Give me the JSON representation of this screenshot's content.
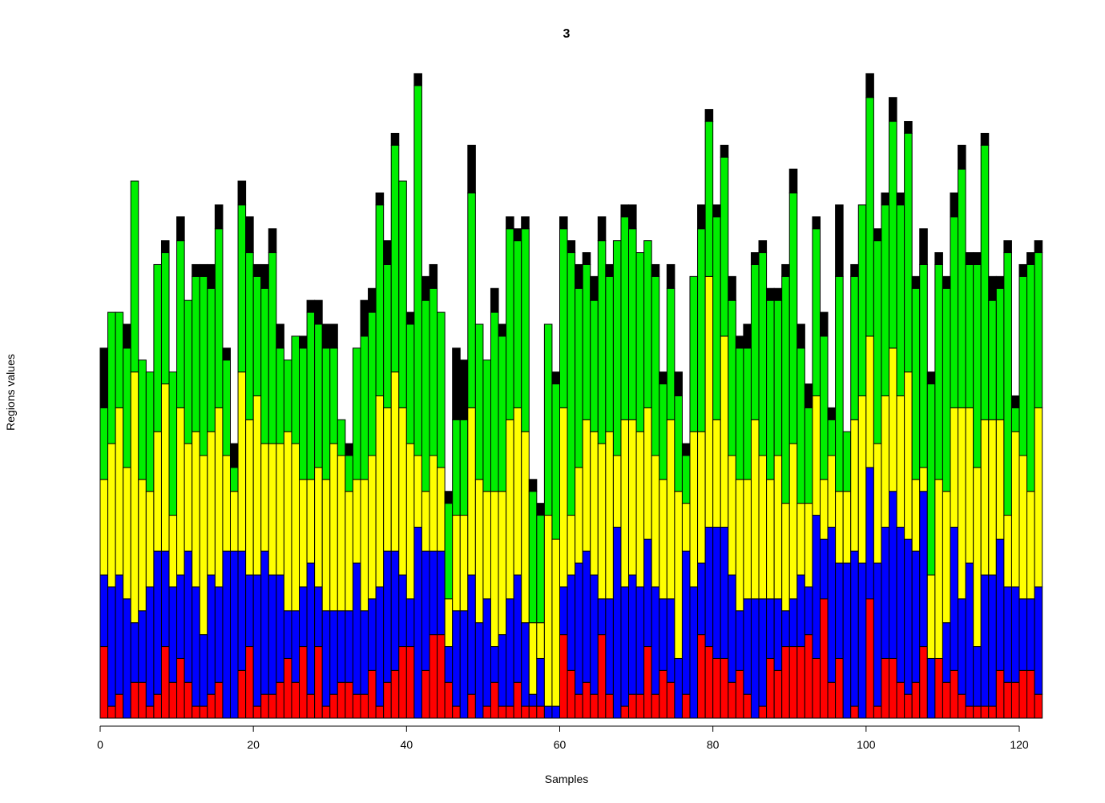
{
  "chart_data": {
    "type": "bar",
    "stacked": true,
    "title": "3",
    "xlabel": "Samples",
    "ylabel": "Regions values",
    "xlim": [
      0,
      122
    ],
    "ylim": [
      0,
      55
    ],
    "x_ticks": [
      0,
      20,
      40,
      60,
      80,
      100,
      120
    ],
    "y_ticks_shown": false,
    "grid": false,
    "colors": {
      "red": "#ff0000",
      "blue": "#0000ff",
      "yellow": "#ffff00",
      "green": "#00ee00",
      "black": "#000000"
    },
    "series": [
      {
        "name": "red",
        "values": [
          6,
          1,
          2,
          0,
          3,
          3,
          1,
          2,
          6,
          3,
          5,
          3,
          1,
          1,
          2,
          3,
          0,
          0,
          4,
          6,
          1,
          2,
          2,
          3,
          5,
          3,
          6,
          2,
          6,
          1,
          2,
          3,
          3,
          2,
          2,
          4,
          1,
          3,
          4,
          6,
          6,
          0,
          4,
          7,
          7,
          3,
          1,
          0,
          2,
          0,
          1,
          3,
          1,
          1,
          3,
          1,
          1,
          1,
          0,
          0,
          7,
          4,
          2,
          3,
          2,
          7,
          2,
          0,
          1,
          2,
          2,
          6,
          2,
          4,
          3,
          0,
          2,
          0,
          7,
          6,
          5,
          5,
          3,
          4,
          2,
          0,
          1,
          5,
          4,
          6,
          6,
          6,
          7,
          5,
          10,
          3,
          5,
          0,
          1,
          0,
          10,
          1,
          5,
          5,
          3,
          2,
          3,
          6,
          0,
          5,
          3,
          4,
          2,
          1,
          1,
          1,
          1,
          4,
          3,
          3,
          4,
          4,
          2
        ]
      },
      {
        "name": "blue",
        "values": [
          6,
          10,
          10,
          10,
          5,
          6,
          10,
          12,
          8,
          8,
          7,
          11,
          10,
          6,
          10,
          8,
          14,
          14,
          10,
          6,
          11,
          12,
          10,
          9,
          4,
          6,
          5,
          11,
          5,
          8,
          7,
          6,
          6,
          11,
          7,
          6,
          10,
          11,
          10,
          6,
          4,
          16,
          10,
          7,
          7,
          3,
          8,
          9,
          10,
          8,
          9,
          3,
          6,
          9,
          9,
          7,
          1,
          4,
          1,
          1,
          4,
          8,
          11,
          11,
          10,
          3,
          8,
          16,
          10,
          10,
          9,
          9,
          9,
          6,
          7,
          5,
          12,
          11,
          6,
          10,
          11,
          11,
          9,
          5,
          8,
          10,
          9,
          5,
          6,
          3,
          4,
          6,
          4,
          12,
          5,
          13,
          8,
          13,
          13,
          13,
          11,
          12,
          11,
          14,
          13,
          13,
          11,
          13,
          5,
          0,
          5,
          12,
          8,
          12,
          5,
          11,
          11,
          11,
          8,
          8,
          6,
          6,
          9
        ]
      },
      {
        "name": "yellow",
        "values": [
          8,
          12,
          14,
          11,
          21,
          11,
          8,
          10,
          14,
          6,
          14,
          9,
          13,
          15,
          12,
          15,
          8,
          5,
          15,
          13,
          15,
          9,
          11,
          11,
          15,
          14,
          9,
          7,
          10,
          11,
          14,
          13,
          10,
          7,
          11,
          12,
          16,
          12,
          15,
          14,
          13,
          6,
          5,
          8,
          7,
          4,
          8,
          8,
          14,
          12,
          9,
          13,
          12,
          15,
          14,
          16,
          6,
          3,
          16,
          14,
          15,
          5,
          8,
          11,
          12,
          13,
          14,
          6,
          14,
          13,
          13,
          11,
          11,
          10,
          15,
          14,
          4,
          13,
          11,
          21,
          9,
          16,
          10,
          11,
          10,
          15,
          12,
          10,
          12,
          9,
          13,
          6,
          7,
          10,
          5,
          6,
          6,
          6,
          11,
          14,
          11,
          10,
          11,
          12,
          11,
          14,
          6,
          2,
          7,
          15,
          11,
          10,
          16,
          13,
          15,
          13,
          13,
          10,
          6,
          13,
          12,
          9,
          15
        ]
      },
      {
        "name": "green",
        "values": [
          6,
          11,
          8,
          10,
          16,
          10,
          10,
          14,
          11,
          12,
          14,
          12,
          13,
          15,
          12,
          15,
          8,
          2,
          14,
          14,
          10,
          13,
          16,
          8,
          6,
          9,
          11,
          14,
          12,
          11,
          8,
          3,
          3,
          11,
          12,
          12,
          16,
          12,
          19,
          19,
          10,
          31,
          16,
          14,
          13,
          8,
          8,
          8,
          18,
          13,
          11,
          15,
          13,
          16,
          14,
          17,
          11,
          9,
          16,
          13,
          15,
          22,
          15,
          13,
          11,
          17,
          13,
          18,
          17,
          16,
          15,
          14,
          15,
          8,
          11,
          8,
          4,
          13,
          17,
          13,
          17,
          15,
          13,
          11,
          11,
          13,
          17,
          15,
          13,
          19,
          21,
          13,
          8,
          14,
          12,
          3,
          18,
          5,
          12,
          16,
          20,
          17,
          16,
          19,
          16,
          20,
          16,
          17,
          16,
          18,
          17,
          16,
          20,
          12,
          17,
          23,
          10,
          11,
          22,
          2,
          15,
          19,
          13
        ]
      },
      {
        "name": "black",
        "values": [
          5,
          0,
          0,
          2,
          0,
          0,
          0,
          0,
          1,
          0,
          2,
          0,
          1,
          1,
          2,
          2,
          1,
          2,
          2,
          3,
          1,
          2,
          2,
          2,
          0,
          0,
          1,
          1,
          2,
          2,
          2,
          0,
          1,
          0,
          3,
          2,
          1,
          2,
          1,
          0,
          1,
          1,
          2,
          2,
          0,
          1,
          6,
          5,
          4,
          0,
          0,
          2,
          1,
          1,
          1,
          1,
          1,
          1,
          0,
          1,
          1,
          1,
          2,
          1,
          2,
          2,
          1,
          0,
          1,
          2,
          0,
          0,
          1,
          1,
          2,
          2,
          1,
          0,
          2,
          1,
          1,
          1,
          2,
          1,
          2,
          1,
          1,
          1,
          1,
          1,
          2,
          2,
          2,
          1,
          2,
          1,
          6,
          0,
          1,
          0,
          2,
          1,
          1,
          2,
          1,
          1,
          1,
          3,
          1,
          1,
          1,
          2,
          2,
          1,
          1,
          1,
          2,
          1,
          1,
          1,
          1,
          1,
          1
        ]
      }
    ]
  }
}
